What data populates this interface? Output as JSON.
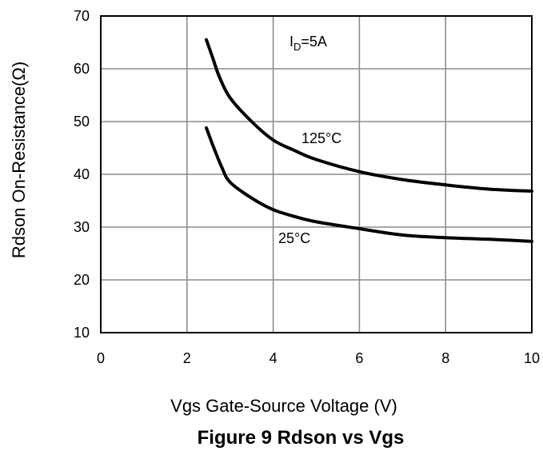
{
  "chart_data": {
    "type": "line",
    "title": "Figure 9 Rdson vs Vgs",
    "xlabel": "Vgs Gate-Source Voltage (V)",
    "ylabel": "Rdson On-Resistance(Ω)",
    "xlim": [
      0,
      10
    ],
    "ylim": [
      10,
      70
    ],
    "x_ticks": [
      "0",
      "2",
      "4",
      "6",
      "8",
      "10"
    ],
    "y_ticks": [
      "10",
      "20",
      "30",
      "40",
      "50",
      "60",
      "70"
    ],
    "grid": true,
    "annotation": {
      "main": "I",
      "sub": "D",
      "rest": "=5A"
    },
    "series": [
      {
        "name": "125°C",
        "points": [
          [
            2.45,
            65.5
          ],
          [
            2.6,
            62
          ],
          [
            2.75,
            58.5
          ],
          [
            3.0,
            54.5
          ],
          [
            3.5,
            50
          ],
          [
            4.0,
            46.5
          ],
          [
            4.5,
            44.5
          ],
          [
            5.0,
            42.8
          ],
          [
            6.0,
            40.5
          ],
          [
            7.0,
            39
          ],
          [
            8.0,
            38
          ],
          [
            9.0,
            37.2
          ],
          [
            10.0,
            36.8
          ]
        ]
      },
      {
        "name": "25°C",
        "points": [
          [
            2.45,
            48.8
          ],
          [
            2.6,
            45.5
          ],
          [
            2.8,
            41.5
          ],
          [
            3.0,
            38.5
          ],
          [
            3.5,
            35.5
          ],
          [
            4.0,
            33.3
          ],
          [
            4.5,
            32
          ],
          [
            5.0,
            31
          ],
          [
            6.0,
            29.7
          ],
          [
            7.0,
            28.5
          ],
          [
            8.0,
            28
          ],
          [
            9.0,
            27.7
          ],
          [
            10.0,
            27.3
          ]
        ]
      }
    ]
  }
}
